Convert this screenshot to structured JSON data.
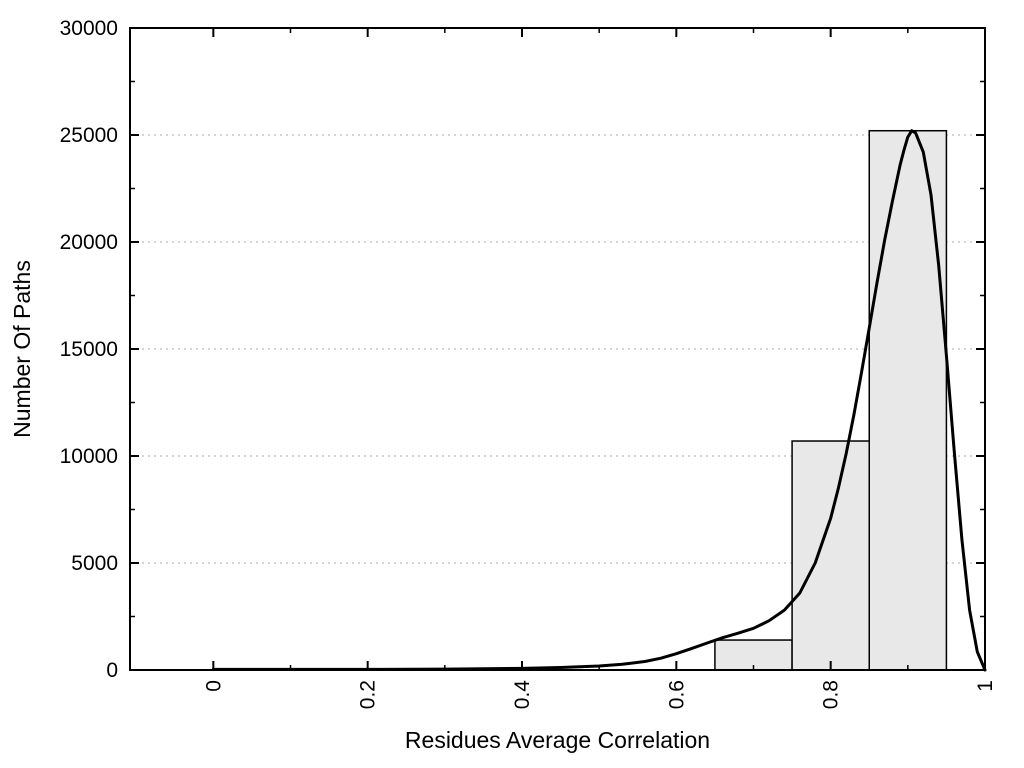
{
  "chart_data": {
    "type": "bar",
    "subtype": "histogram-with-density-curve",
    "title": "",
    "xlabel": "Residues Average Correlation",
    "ylabel": "Number Of Paths",
    "xlim": [
      -0.108,
      1.0
    ],
    "ylim": [
      0,
      30000
    ],
    "grid": {
      "horizontal": true,
      "vertical": false,
      "style": "dotted"
    },
    "legend": "none",
    "xticks": {
      "values": [
        0,
        0.2,
        0.4,
        0.6,
        0.8,
        1.0
      ],
      "labels": [
        "0",
        "0.2",
        "0.4",
        "0.6",
        "0.8",
        "1"
      ],
      "rotation": 90
    },
    "xminor": [
      0.1,
      0.3,
      0.5,
      0.7,
      0.9
    ],
    "yticks": {
      "values": [
        0,
        5000,
        10000,
        15000,
        20000,
        25000,
        30000
      ],
      "labels": [
        "0",
        "5000",
        "10000",
        "15000",
        "20000",
        "25000",
        "30000"
      ]
    },
    "yminor": [
      2500,
      7500,
      12500,
      17500,
      22500,
      27500
    ],
    "bars": [
      {
        "x0": 0.65,
        "x1": 0.75,
        "count": 1400
      },
      {
        "x0": 0.75,
        "x1": 0.85,
        "count": 10700
      },
      {
        "x0": 0.85,
        "x1": 0.95,
        "count": 25200
      }
    ],
    "curve": [
      [
        0.0,
        30
      ],
      [
        0.1,
        30
      ],
      [
        0.2,
        30
      ],
      [
        0.3,
        40
      ],
      [
        0.35,
        55
      ],
      [
        0.4,
        75
      ],
      [
        0.45,
        115
      ],
      [
        0.5,
        185
      ],
      [
        0.53,
        265
      ],
      [
        0.56,
        400
      ],
      [
        0.58,
        550
      ],
      [
        0.6,
        760
      ],
      [
        0.62,
        1010
      ],
      [
        0.64,
        1260
      ],
      [
        0.66,
        1510
      ],
      [
        0.68,
        1720
      ],
      [
        0.7,
        1950
      ],
      [
        0.72,
        2300
      ],
      [
        0.74,
        2800
      ],
      [
        0.76,
        3600
      ],
      [
        0.78,
        5000
      ],
      [
        0.8,
        7100
      ],
      [
        0.81,
        8500
      ],
      [
        0.82,
        10100
      ],
      [
        0.83,
        11900
      ],
      [
        0.84,
        13900
      ],
      [
        0.85,
        16000
      ],
      [
        0.86,
        18100
      ],
      [
        0.87,
        20100
      ],
      [
        0.88,
        21900
      ],
      [
        0.89,
        23600
      ],
      [
        0.895,
        24300
      ],
      [
        0.9,
        24900
      ],
      [
        0.905,
        25200
      ],
      [
        0.91,
        25100
      ],
      [
        0.92,
        24200
      ],
      [
        0.93,
        22200
      ],
      [
        0.94,
        18900
      ],
      [
        0.95,
        14700
      ],
      [
        0.96,
        10300
      ],
      [
        0.97,
        6100
      ],
      [
        0.98,
        2800
      ],
      [
        0.99,
        850
      ],
      [
        1.0,
        0
      ]
    ],
    "colors": {
      "bar_fill": "#e8e8e8",
      "bar_stroke": "#000000",
      "curve": "#000000",
      "grid": "#aaaaaa",
      "axis": "#000000",
      "background": "#ffffff",
      "text": "#000000"
    }
  }
}
